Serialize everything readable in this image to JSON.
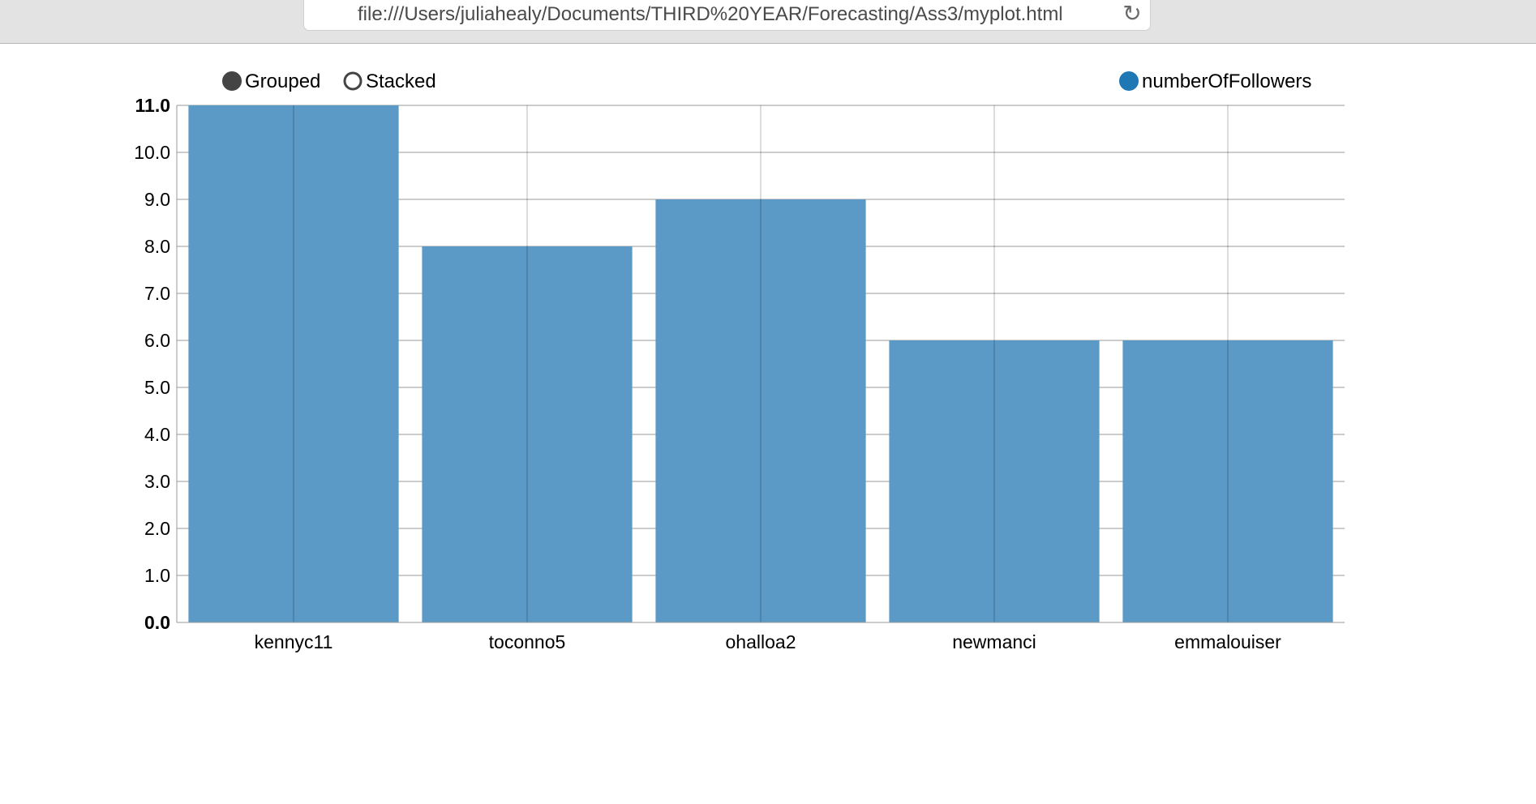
{
  "browser": {
    "url": "file:///Users/juliahealy/Documents/THIRD%20YEAR/Forecasting/Ass3/myplot.html",
    "reload_icon": "reload-icon"
  },
  "controls": {
    "grouped_label": "Grouped",
    "stacked_label": "Stacked",
    "selected": "Grouped"
  },
  "colors": {
    "bar": "#5b9ac6",
    "legend_marker": "#1f77b4",
    "grid": "#999999",
    "radio_filled": "#444444"
  },
  "chart_data": {
    "type": "bar",
    "categories": [
      "kennyc11",
      "toconno5",
      "ohalloa2",
      "newmanci",
      "emmalouiser"
    ],
    "series": [
      {
        "name": "numberOfFollowers",
        "values": [
          11,
          8,
          9,
          6,
          6
        ]
      }
    ],
    "ylim": [
      0,
      11
    ],
    "yticks": [
      "0.0",
      "1.0",
      "2.0",
      "3.0",
      "4.0",
      "5.0",
      "6.0",
      "7.0",
      "8.0",
      "9.0",
      "10.0",
      "11.0"
    ],
    "grid": true,
    "legend_position": "top-right",
    "xlabel": "",
    "ylabel": ""
  }
}
